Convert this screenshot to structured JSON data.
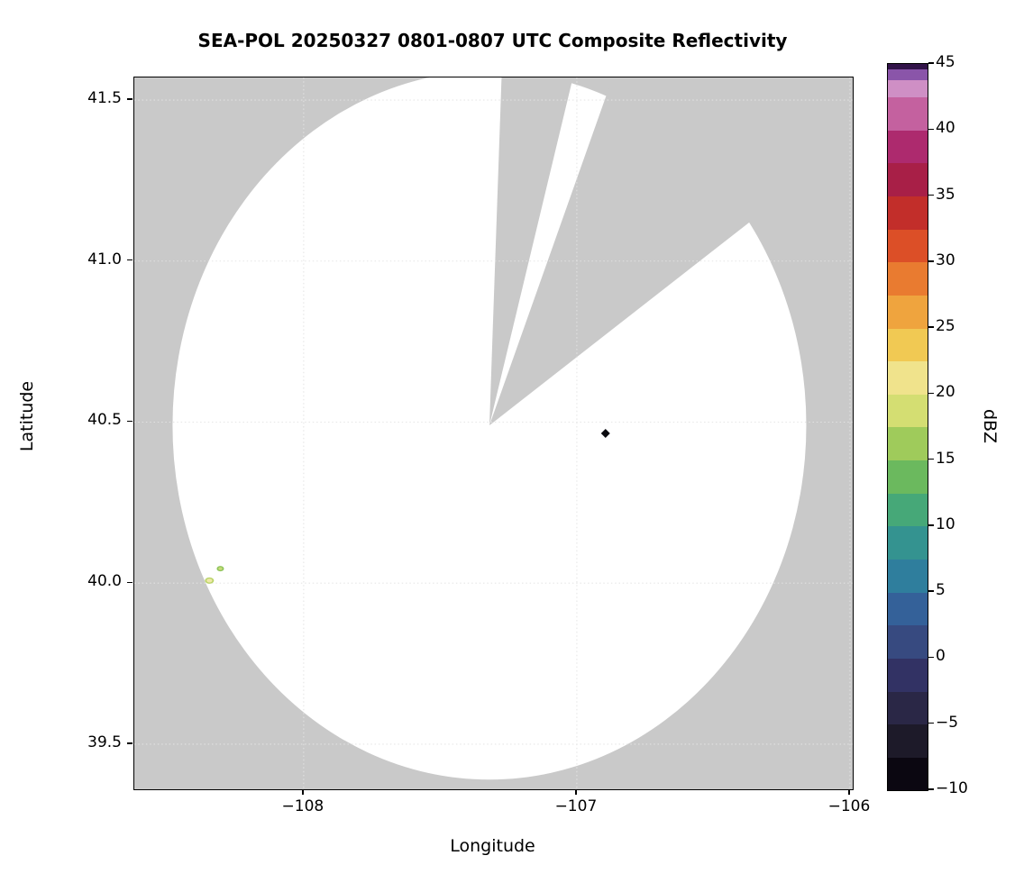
{
  "chart_data": {
    "type": "heatmap",
    "title": "SEA-POL 20250327 0801-0807 UTC Composite Reflectivity",
    "xlabel": "Longitude",
    "ylabel": "Latitude",
    "xlim": [
      -108.62,
      -105.99
    ],
    "ylim": [
      39.36,
      41.57
    ],
    "grid": true,
    "x_tick_values": [
      -108,
      -107,
      -106
    ],
    "x_tick_labels": [
      "−108",
      "−107",
      "−106"
    ],
    "y_tick_values": [
      39.5,
      40.0,
      40.5,
      41.0,
      41.5
    ],
    "y_tick_labels": [
      "39.5",
      "40.0",
      "40.5",
      "41.0",
      "41.5"
    ],
    "colors": {
      "no_coverage_gray": "#c9c9c9",
      "coverage_white": "#ffffff",
      "grid_line": "#e4e4e4",
      "frame": "#000000"
    },
    "radar": {
      "center_lon": -107.32,
      "center_lat": 40.49,
      "radius_lon_deg": 1.16,
      "radius_lat_deg": 1.1,
      "blocked_sectors_deg": [
        {
          "from_az": 2,
          "to_az": 13.5
        },
        {
          "from_az": 19.5,
          "to_az": 52
        }
      ]
    },
    "echoes": [
      {
        "shape": "diamond",
        "lon": -106.895,
        "lat": 40.465,
        "dbz": -10,
        "color": "#0b0b10",
        "size": 5
      },
      {
        "shape": "blob",
        "lon": -108.305,
        "lat": 40.045,
        "dbz": 14,
        "color": "#8fc45c",
        "inner": "#c9dc79",
        "rx": 4,
        "ry": 3
      },
      {
        "shape": "blob",
        "lon": -108.345,
        "lat": 40.008,
        "dbz": 17,
        "color": "#b9d368",
        "inner": "#efe9a8",
        "rx": 5,
        "ry": 3.5
      }
    ],
    "colorbar": {
      "label": "dBZ",
      "min": -10,
      "max": 45,
      "tick_values": [
        45,
        40,
        35,
        30,
        25,
        20,
        15,
        10,
        5,
        0,
        -5,
        -10
      ],
      "tick_labels": [
        "45",
        "40",
        "35",
        "30",
        "25",
        "20",
        "15",
        "10",
        "5",
        "0",
        "−5",
        "−10"
      ],
      "bands": [
        {
          "from": -10,
          "to": -7.5,
          "color": "#0b0711"
        },
        {
          "from": -7.5,
          "to": -5,
          "color": "#1d1a29"
        },
        {
          "from": -5,
          "to": -2.5,
          "color": "#2a2746"
        },
        {
          "from": -2.5,
          "to": 0,
          "color": "#323264"
        },
        {
          "from": 0,
          "to": 2.5,
          "color": "#374a80"
        },
        {
          "from": 2.5,
          "to": 5,
          "color": "#346199"
        },
        {
          "from": 5,
          "to": 7.5,
          "color": "#2f7e9d"
        },
        {
          "from": 7.5,
          "to": 10,
          "color": "#349390"
        },
        {
          "from": 10,
          "to": 12.5,
          "color": "#46a878"
        },
        {
          "from": 12.5,
          "to": 15,
          "color": "#6bb95e"
        },
        {
          "from": 15,
          "to": 17.5,
          "color": "#9fcb5b"
        },
        {
          "from": 17.5,
          "to": 20,
          "color": "#d4de72"
        },
        {
          "from": 20,
          "to": 22.5,
          "color": "#f0e38c"
        },
        {
          "from": 22.5,
          "to": 25,
          "color": "#f1c953"
        },
        {
          "from": 25,
          "to": 27.5,
          "color": "#efa43e"
        },
        {
          "from": 27.5,
          "to": 30,
          "color": "#e97b30"
        },
        {
          "from": 30,
          "to": 32.5,
          "color": "#dc4f27"
        },
        {
          "from": 32.5,
          "to": 35,
          "color": "#c22e2a"
        },
        {
          "from": 35,
          "to": 37.5,
          "color": "#a81f47"
        },
        {
          "from": 37.5,
          "to": 40,
          "color": "#ad2a6e"
        },
        {
          "from": 40,
          "to": 42.5,
          "color": "#c4619f"
        },
        {
          "from": 42.5,
          "to": 43.8,
          "color": "#cf8fc5"
        },
        {
          "from": 43.8,
          "to": 44.6,
          "color": "#8a55a9"
        },
        {
          "from": 44.6,
          "to": 45,
          "color": "#321449"
        }
      ]
    }
  }
}
